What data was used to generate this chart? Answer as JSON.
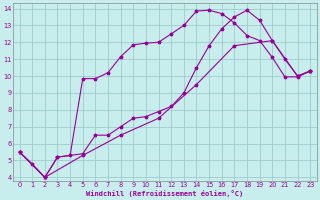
{
  "xlabel": "Windchill (Refroidissement éolien,°C)",
  "xlim": [
    -0.5,
    23.5
  ],
  "ylim": [
    3.8,
    14.3
  ],
  "xticks": [
    0,
    1,
    2,
    3,
    4,
    5,
    6,
    7,
    8,
    9,
    10,
    11,
    12,
    13,
    14,
    15,
    16,
    17,
    18,
    19,
    20,
    21,
    22,
    23
  ],
  "yticks": [
    4,
    5,
    6,
    7,
    8,
    9,
    10,
    11,
    12,
    13,
    14
  ],
  "bg_color": "#c8eded",
  "grid_color": "#a0cccc",
  "line_color": "#990099",
  "curve1_x": [
    0,
    1,
    2,
    3,
    4,
    5,
    6,
    7,
    8,
    9,
    10,
    11,
    12,
    13,
    14,
    15,
    16,
    17,
    18,
    19,
    20,
    21,
    22,
    23
  ],
  "curve1_y": [
    5.5,
    4.8,
    4.0,
    5.2,
    5.3,
    9.85,
    9.85,
    10.2,
    11.15,
    11.85,
    11.95,
    12.0,
    12.5,
    13.0,
    13.85,
    13.9,
    13.7,
    13.15,
    12.4,
    12.1,
    11.1,
    9.95,
    9.95,
    10.3
  ],
  "curve2_x": [
    0,
    2,
    3,
    5,
    6,
    7,
    8,
    9,
    10,
    11,
    12,
    13,
    14,
    15,
    16,
    17,
    18,
    19,
    20,
    21,
    22,
    23
  ],
  "curve2_y": [
    5.5,
    4.0,
    5.2,
    5.4,
    6.5,
    6.5,
    7.0,
    7.5,
    7.6,
    7.9,
    8.2,
    9.0,
    10.5,
    11.8,
    12.8,
    13.5,
    13.9,
    13.3,
    12.1,
    11.0,
    10.0,
    10.3
  ],
  "curve3_x": [
    0,
    2,
    5,
    8,
    11,
    14,
    17,
    20,
    22,
    23
  ],
  "curve3_y": [
    5.5,
    4.0,
    5.3,
    6.5,
    7.5,
    9.5,
    11.8,
    12.1,
    10.0,
    10.3
  ]
}
